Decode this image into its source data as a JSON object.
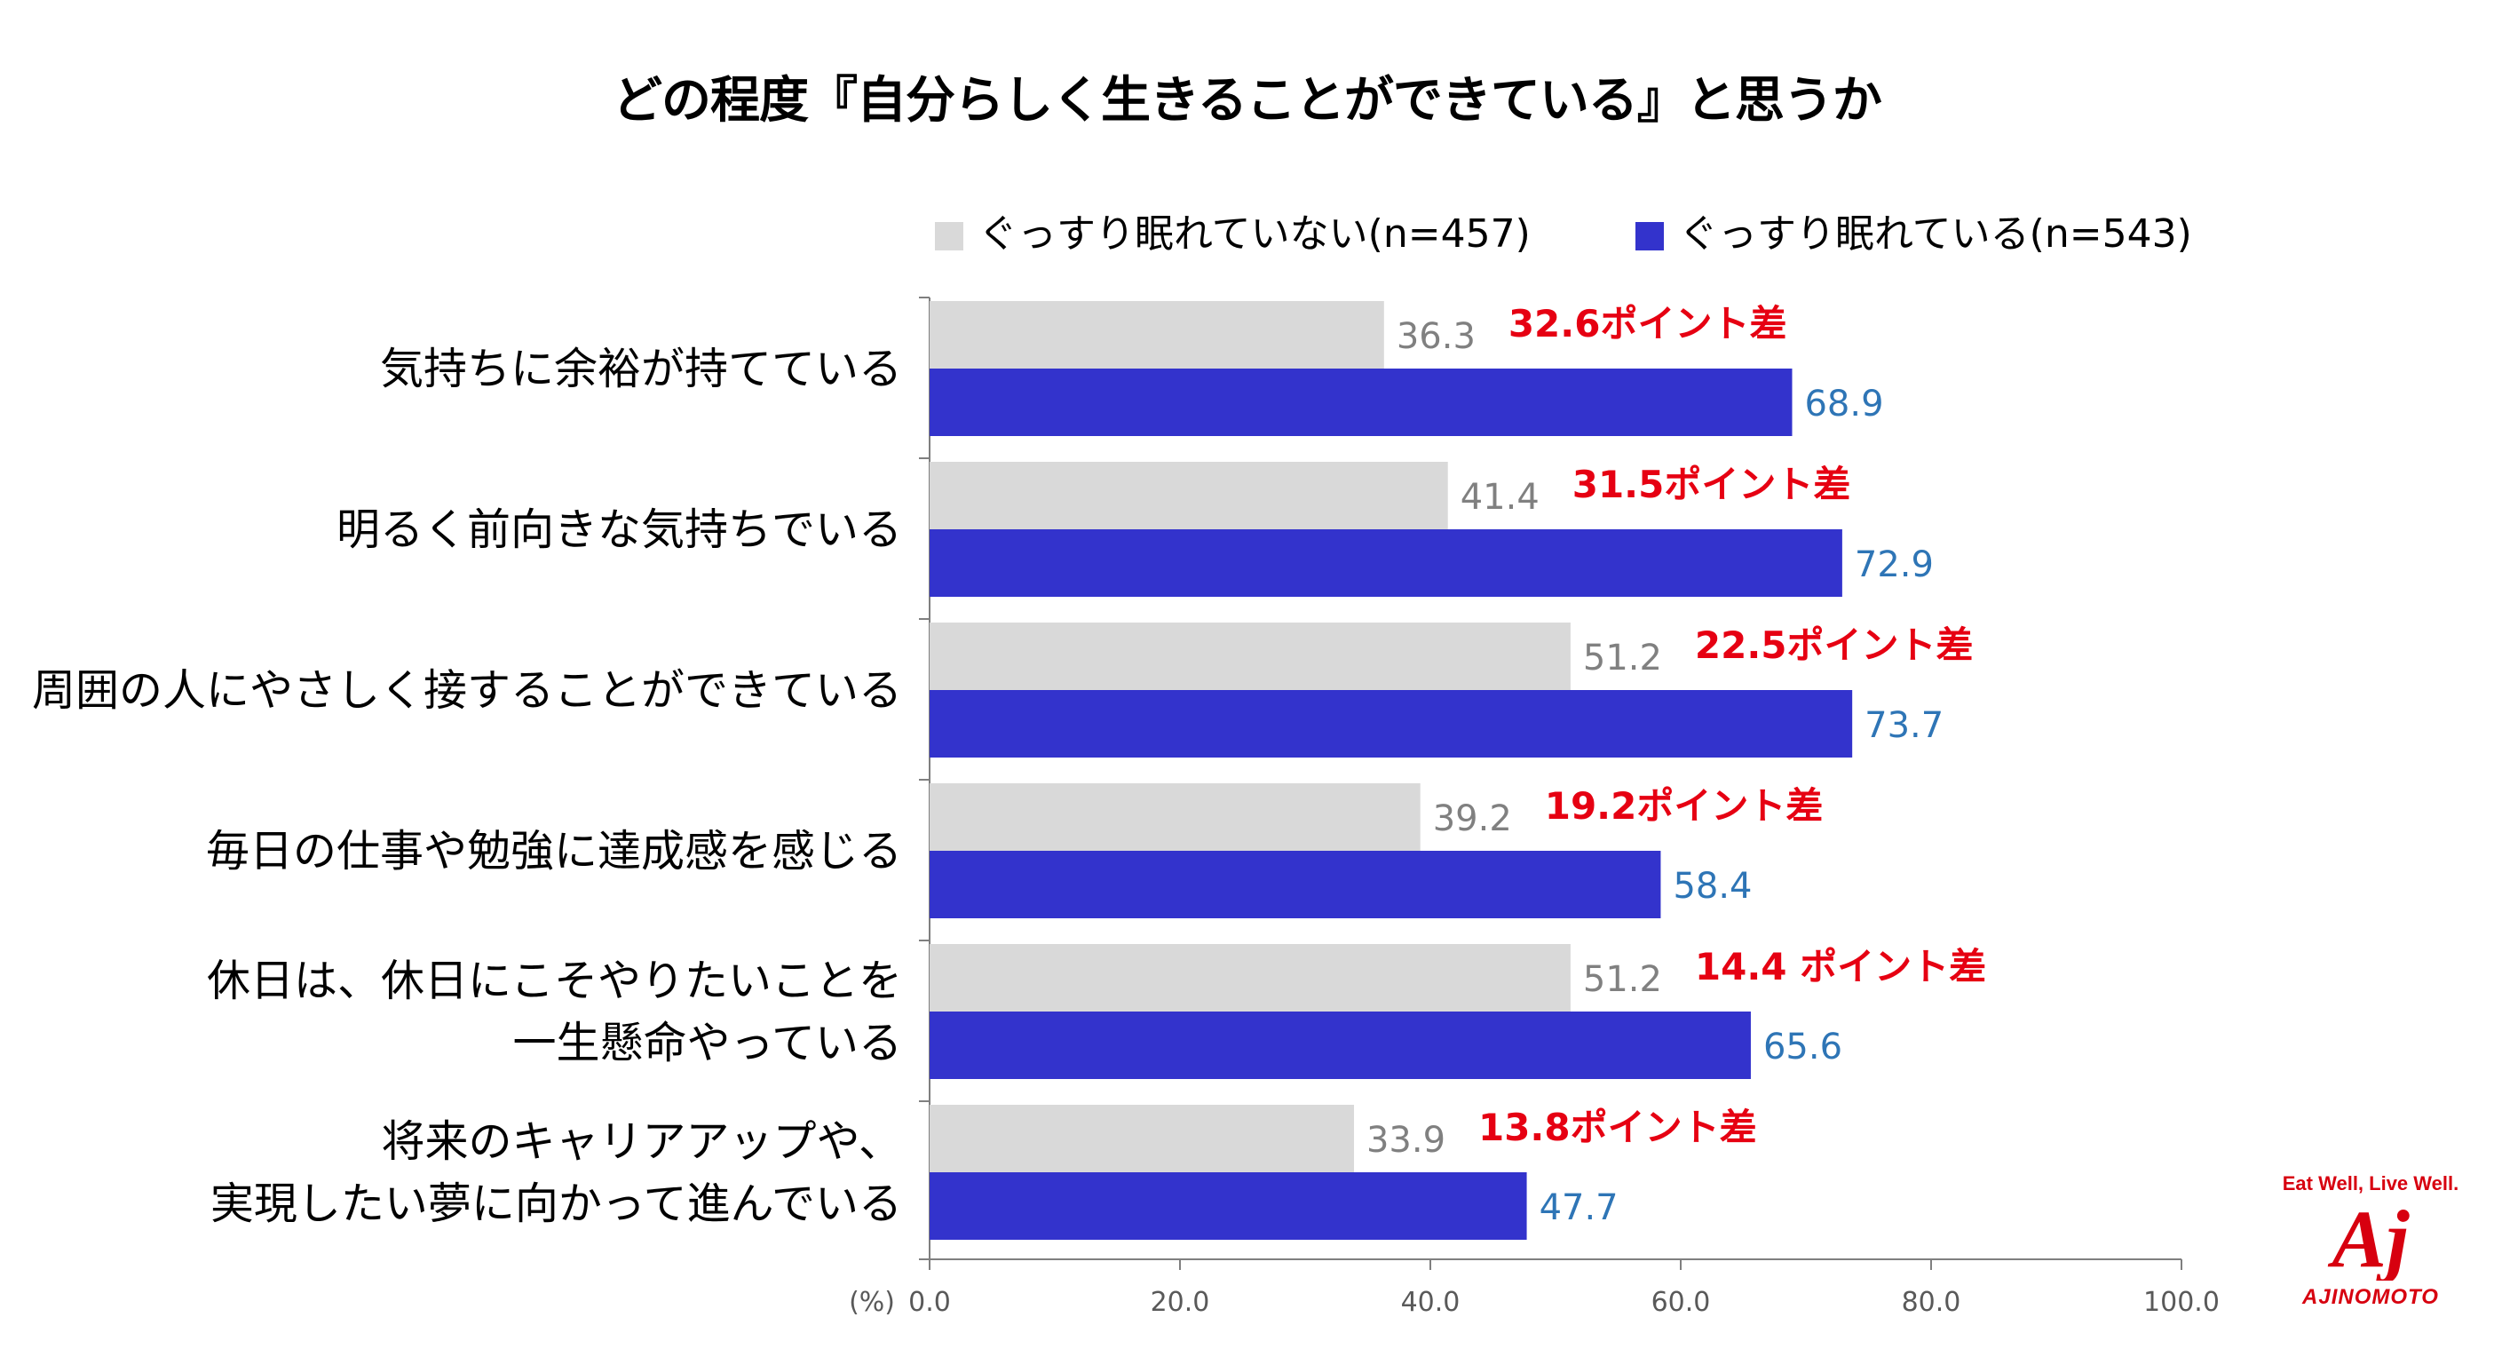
{
  "chart_data": {
    "type": "bar",
    "orientation": "horizontal",
    "title": "どの程度『自分らしく生きることができている』と思うか",
    "xlabel": "(%)",
    "xlim": [
      0,
      100
    ],
    "xticks": [
      "0.0",
      "20.0",
      "40.0",
      "60.0",
      "80.0",
      "100.0"
    ],
    "legend_position": "top",
    "categories": [
      [
        "気持ちに余裕が持てている"
      ],
      [
        "明るく前向きな気持ちでいる"
      ],
      [
        "周囲の人にやさしく接することができている"
      ],
      [
        "毎日の仕事や勉強に達成感を感じる"
      ],
      [
        "休日は、休日にこそやりたいことを",
        "一生懸命やっている"
      ],
      [
        "将来のキャリアアップや、",
        "実現したい夢に向かって進んでいる"
      ]
    ],
    "series": [
      {
        "name": "ぐっすり眠れていない(n=457)",
        "color": "#d9d9d9",
        "label_color": "#808080",
        "values": [
          36.3,
          41.4,
          51.2,
          39.2,
          51.2,
          33.9
        ],
        "labels": [
          "36.3",
          "41.4",
          "51.2",
          "39.2",
          "51.2",
          "33.9"
        ]
      },
      {
        "name": "ぐっすり眠れている(n=543)",
        "color": "#3333cc",
        "label_color": "#2e75b6",
        "values": [
          68.9,
          72.9,
          73.7,
          58.4,
          65.6,
          47.7
        ],
        "labels": [
          "68.9",
          "72.9",
          "73.7",
          "58.4",
          "65.6",
          "47.7"
        ]
      }
    ],
    "annotations": [
      "32.6ポイント差",
      "31.5ポイント差",
      "22.5ポイント差",
      "19.2ポイント差",
      "14.4 ポイント差",
      "13.8ポイント差"
    ],
    "annotation_color": "#e60012"
  },
  "brand": {
    "tagline": "Eat Well, Live Well.",
    "mark": "Aj",
    "name": "AJINOMOTO",
    "color": "#d7000f"
  }
}
